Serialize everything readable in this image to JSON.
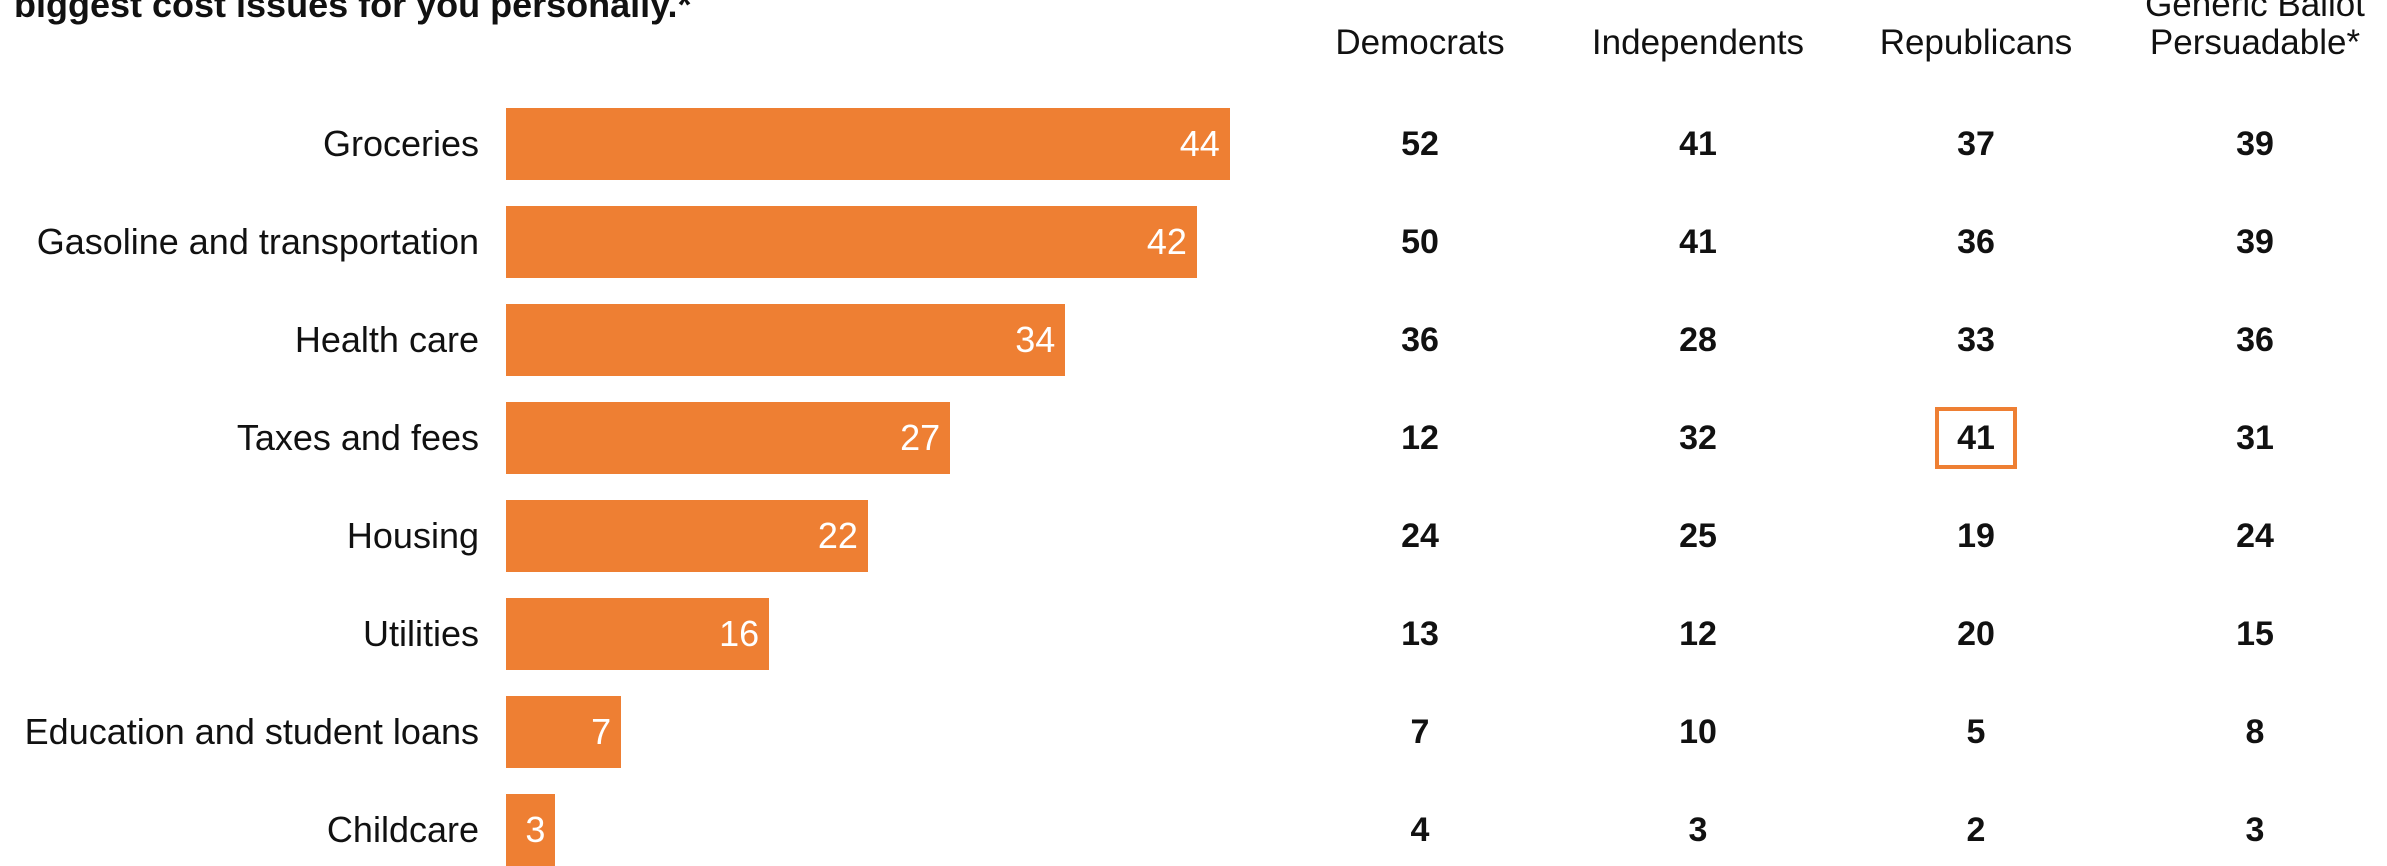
{
  "title": "biggest cost issues for you personally.*",
  "chart_data": {
    "type": "bar",
    "orientation": "horizontal",
    "title": "biggest cost issues for you personally.*",
    "categories": [
      "Groceries",
      "Gasoline and transportation",
      "Health care",
      "Taxes and fees",
      "Housing",
      "Utilities",
      "Education and student loans",
      "Childcare"
    ],
    "values": [
      44,
      42,
      34,
      27,
      22,
      16,
      7,
      3
    ],
    "bar_color": "#ee7f33",
    "xlim": [
      0,
      100
    ],
    "grid": false,
    "table": {
      "columns": [
        {
          "header": [
            "Democrats"
          ],
          "values": [
            52,
            50,
            36,
            12,
            24,
            13,
            7,
            4
          ]
        },
        {
          "header": [
            "Independents"
          ],
          "values": [
            41,
            41,
            28,
            32,
            25,
            12,
            10,
            3
          ]
        },
        {
          "header": [
            "Republicans"
          ],
          "values": [
            37,
            36,
            33,
            41,
            19,
            20,
            5,
            2
          ]
        },
        {
          "header": [
            "Generic Ballot",
            "Persuadable*"
          ],
          "values": [
            39,
            39,
            36,
            31,
            24,
            15,
            8,
            3
          ]
        }
      ],
      "highlight": {
        "column": 2,
        "row": 3,
        "color": "#ee7f33"
      }
    }
  }
}
